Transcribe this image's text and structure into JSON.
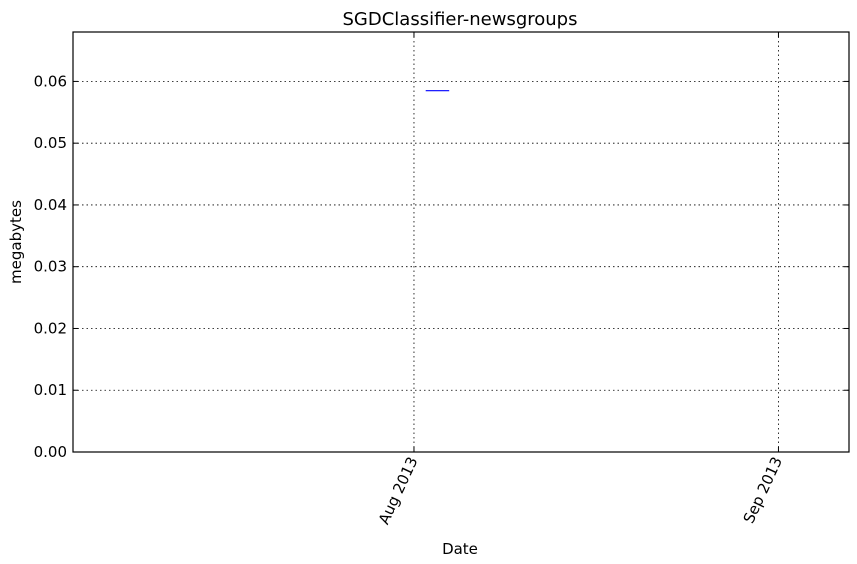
{
  "chart_data": {
    "type": "line",
    "title": "SGDClassifier-newsgroups",
    "xlabel": "Date",
    "ylabel": "megabytes",
    "ylim": [
      0,
      0.068
    ],
    "xlim": [
      "2013-07-03",
      "2013-09-07"
    ],
    "grid": true,
    "y_ticks": [
      {
        "value": 0.0,
        "label": "0.00"
      },
      {
        "value": 0.01,
        "label": "0.01"
      },
      {
        "value": 0.02,
        "label": "0.02"
      },
      {
        "value": 0.03,
        "label": "0.03"
      },
      {
        "value": 0.04,
        "label": "0.04"
      },
      {
        "value": 0.05,
        "label": "0.05"
      },
      {
        "value": 0.06,
        "label": "0.06"
      }
    ],
    "x_ticks": [
      {
        "value": "2013-08-01",
        "label": "Aug 2013"
      },
      {
        "value": "2013-09-01",
        "label": "Sep 2013"
      }
    ],
    "series": [
      {
        "color": "#0000ff",
        "points": [
          {
            "x": "2013-08-02",
            "y": 0.0585
          },
          {
            "x": "2013-08-04",
            "y": 0.0585
          }
        ]
      }
    ]
  }
}
